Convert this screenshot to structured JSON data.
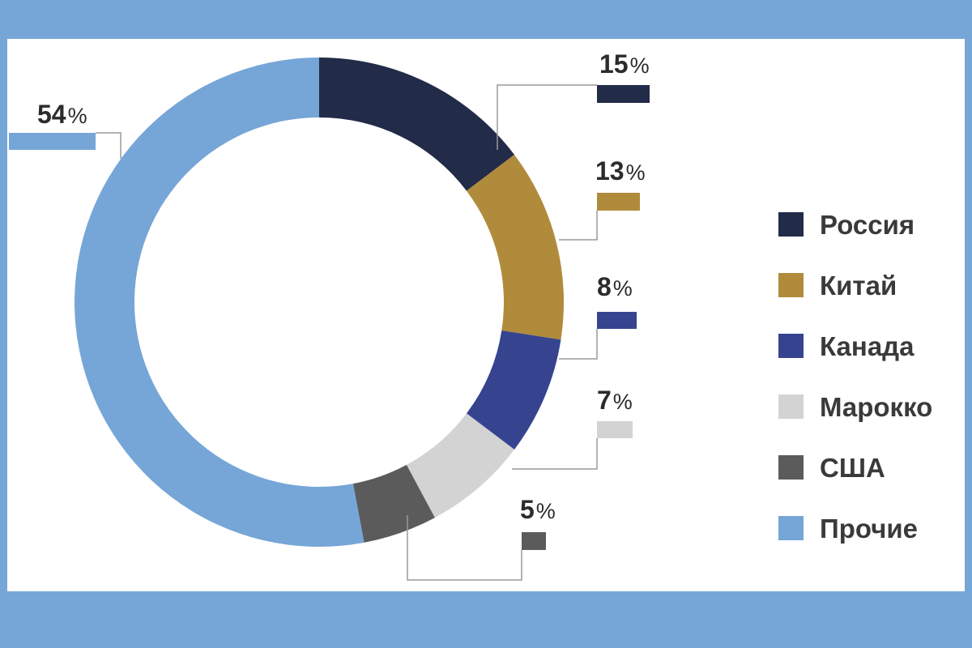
{
  "chart_data": {
    "type": "pie",
    "donut": true,
    "categories": [
      "Россия",
      "Китай",
      "Канада",
      "Марокко",
      "США",
      "Прочие"
    ],
    "values": [
      15,
      13,
      8,
      7,
      5,
      54
    ],
    "value_labels": [
      "15",
      "13",
      "8",
      "7",
      "5",
      "54"
    ],
    "unit": "%",
    "colors": [
      "#222b48",
      "#b08b3b",
      "#36448f",
      "#d3d3d3",
      "#5b5b5b",
      "#76a6d7"
    ],
    "legend_position": "right",
    "title": ""
  }
}
